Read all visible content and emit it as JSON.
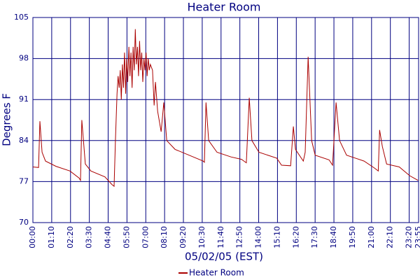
{
  "chart_data": {
    "type": "line",
    "title": "Heater Room",
    "x_label": "05/02/05 (EST)",
    "y_label": "Degrees F",
    "x": [
      0,
      21,
      26,
      34,
      47,
      86,
      138,
      172,
      177,
      182,
      195,
      216,
      268,
      294,
      302,
      307,
      313,
      317,
      321,
      325,
      329,
      333,
      337,
      341,
      345,
      349,
      353,
      357,
      361,
      365,
      369,
      373,
      377,
      381,
      385,
      389,
      393,
      397,
      401,
      405,
      409,
      413,
      417,
      421,
      425,
      429,
      433,
      437,
      445,
      451,
      456,
      464,
      477,
      487,
      498,
      529,
      581,
      633,
      638,
      644,
      654,
      685,
      737,
      776,
      794,
      805,
      815,
      841,
      907,
      925,
      959,
      969,
      977,
      1006,
      1013,
      1024,
      1037,
      1050,
      1102,
      1115,
      1128,
      1141,
      1167,
      1232,
      1271,
      1285,
      1290,
      1300,
      1316,
      1363,
      1402,
      1433
    ],
    "series": [
      {
        "name": "Heater Room",
        "color": "#aa0000",
        "values": [
          79.5,
          79.4,
          87.3,
          82,
          80.5,
          79.6,
          78.8,
          77.6,
          77.2,
          87.5,
          80,
          78.8,
          77.8,
          76.5,
          76.2,
          84,
          92,
          95,
          93,
          96,
          91,
          97,
          93,
          99,
          92,
          98,
          94,
          100,
          95,
          99,
          93,
          100,
          96,
          103,
          97,
          100,
          95,
          101,
          96,
          99,
          94,
          98,
          96,
          99,
          95,
          98,
          96,
          97,
          96,
          90,
          94,
          89,
          85.5,
          90.5,
          84,
          82.5,
          81.5,
          80.5,
          80.3,
          90.5,
          84,
          82,
          81.2,
          80.8,
          80.2,
          91.3,
          84,
          82,
          81,
          79.8,
          79.7,
          86.4,
          82.5,
          80.5,
          82,
          98.3,
          84,
          81.5,
          80.7,
          79.8,
          90.5,
          84,
          81.5,
          80.5,
          79.3,
          78.8,
          85.8,
          83,
          80,
          79.5,
          78,
          77.2
        ]
      }
    ],
    "xlim": [
      0,
      1435
    ],
    "xticks": [
      {
        "value": 0,
        "label": "00:00"
      },
      {
        "value": 70,
        "label": "01:10"
      },
      {
        "value": 140,
        "label": "02:20"
      },
      {
        "value": 210,
        "label": "03:30"
      },
      {
        "value": 280,
        "label": "04:40"
      },
      {
        "value": 350,
        "label": "05:50"
      },
      {
        "value": 420,
        "label": "07:00"
      },
      {
        "value": 490,
        "label": "08:10"
      },
      {
        "value": 560,
        "label": "09:20"
      },
      {
        "value": 630,
        "label": "10:30"
      },
      {
        "value": 700,
        "label": "11:40"
      },
      {
        "value": 770,
        "label": "12:50"
      },
      {
        "value": 840,
        "label": "14:00"
      },
      {
        "value": 910,
        "label": "15:10"
      },
      {
        "value": 980,
        "label": "16:20"
      },
      {
        "value": 1050,
        "label": "17:30"
      },
      {
        "value": 1120,
        "label": "18:40"
      },
      {
        "value": 1190,
        "label": "19:50"
      },
      {
        "value": 1260,
        "label": "21:00"
      },
      {
        "value": 1330,
        "label": "22:10"
      },
      {
        "value": 1400,
        "label": "23:20"
      },
      {
        "value": 1435,
        "label": "23:55"
      }
    ],
    "ylim": [
      70,
      105
    ],
    "yticks": [
      70,
      77,
      84,
      91,
      98,
      105
    ],
    "grid": true
  }
}
